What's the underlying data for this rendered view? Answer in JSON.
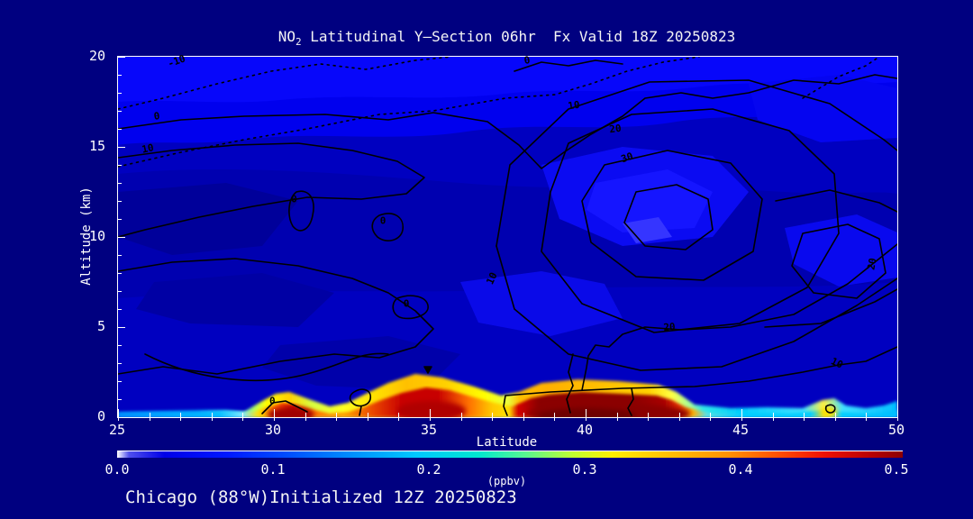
{
  "title": {
    "prefix": "NO",
    "sub": "2",
    "rest": " Latitudinal Y—Section 06hr  Fx Valid 18Z 20250823"
  },
  "footer": {
    "annotation": "Chicago (88°W)Initialized 12Z 20250823"
  },
  "colors": {
    "background": "#000080",
    "plot_base_blue": "#0000C0",
    "axis": "#FFFFFF",
    "contour_line": "#000000",
    "hotspot_core": "#8B0000"
  },
  "chart_data": {
    "type": "heatmap",
    "title": "NO2 Latitudinal Y-Section 06hr  Fx Valid 18Z 20250823",
    "xlabel": "Latitude",
    "ylabel": "Altitude (km)",
    "x_range": [
      25,
      50
    ],
    "y_range": [
      0,
      20
    ],
    "x_major_ticks": [
      25,
      30,
      35,
      40,
      45,
      50
    ],
    "x_minor_step": 1,
    "y_major_ticks": [
      0,
      5,
      10,
      15,
      20
    ],
    "y_minor_step": 1,
    "grid": false,
    "fill_field": "NO2 concentration (ppbv): mostly <0.1 ppbv aloft (shades of blue); enhanced boundary-layer plume below ~2 km",
    "surface_profile": {
      "latitudes": [
        25,
        26,
        27,
        28,
        29,
        30,
        30.5,
        31,
        32,
        33,
        34,
        35,
        36,
        37,
        38,
        39,
        40,
        41,
        42,
        42.5,
        43,
        44,
        45,
        46,
        47,
        47.5,
        48,
        48.5,
        49,
        50
      ],
      "ppbv": [
        0.15,
        0.15,
        0.15,
        0.15,
        0.2,
        0.4,
        0.5,
        0.4,
        0.3,
        0.4,
        0.5,
        0.5,
        0.4,
        0.3,
        0.5,
        0.5,
        0.5,
        0.5,
        0.5,
        0.5,
        0.4,
        0.2,
        0.2,
        0.2,
        0.2,
        0.25,
        0.3,
        0.2,
        0.18,
        0.15
      ]
    },
    "overlay_contours": {
      "labeled_levels": [
        -10,
        0,
        10,
        20,
        30
      ],
      "negative_style": "dotted",
      "positive_style": "solid",
      "primary_max_center": {
        "latitude": 42,
        "altitude_km": 11.5
      },
      "secondary_max_center": {
        "latitude": 48,
        "altitude_km": 9
      }
    },
    "contour_labels": [
      {
        "text": "-10",
        "x": 7.5,
        "y": 1.3,
        "rot": -20
      },
      {
        "text": "0",
        "x": 5.0,
        "y": 16.5,
        "rot": -8
      },
      {
        "text": "10",
        "x": 3.8,
        "y": 25.5,
        "rot": -12
      },
      {
        "text": "0",
        "x": 52.5,
        "y": 1.0,
        "rot": -10
      },
      {
        "text": "0",
        "x": 22.6,
        "y": 39.5,
        "rot": 0
      },
      {
        "text": "0",
        "x": 34.0,
        "y": 45.5,
        "rot": 0
      },
      {
        "text": "0",
        "x": 37.0,
        "y": 68.5,
        "rot": 0
      },
      {
        "text": "10",
        "x": 58.5,
        "y": 13.5,
        "rot": -8
      },
      {
        "text": "20",
        "x": 63.8,
        "y": 20.0,
        "rot": -8
      },
      {
        "text": "30",
        "x": 65.3,
        "y": 28.0,
        "rot": -20
      },
      {
        "text": "10",
        "x": 48.0,
        "y": 61.5,
        "rot": -65
      },
      {
        "text": "20",
        "x": 70.8,
        "y": 75.0,
        "rot": -5
      },
      {
        "text": "20",
        "x": 96.8,
        "y": 57.5,
        "rot": -80
      },
      {
        "text": "10",
        "x": 92.3,
        "y": 85.0,
        "rot": 25
      },
      {
        "text": "0",
        "x": 19.8,
        "y": 95.5,
        "rot": 0
      }
    ],
    "colorbar": {
      "label": "(ppbv)",
      "min": 0.0,
      "max": 0.5,
      "ticks": [
        "0.0",
        "0.1",
        "0.2",
        "0.3",
        "0.4",
        "0.5"
      ],
      "gradient_stops": [
        {
          "c": "#FFFFFF",
          "p": 0
        },
        {
          "c": "#5050EC",
          "p": 1.5
        },
        {
          "c": "#0000E8",
          "p": 6
        },
        {
          "c": "#0018FF",
          "p": 14
        },
        {
          "c": "#0050FF",
          "p": 22
        },
        {
          "c": "#0090FF",
          "p": 30
        },
        {
          "c": "#00C8FF",
          "p": 38
        },
        {
          "c": "#00E8D0",
          "p": 46
        },
        {
          "c": "#58F890",
          "p": 52
        },
        {
          "c": "#C0FF30",
          "p": 58
        },
        {
          "c": "#FFF000",
          "p": 63
        },
        {
          "c": "#FFC000",
          "p": 70
        },
        {
          "c": "#FF9000",
          "p": 78
        },
        {
          "c": "#FF5000",
          "p": 84
        },
        {
          "c": "#F01000",
          "p": 90
        },
        {
          "c": "#B80000",
          "p": 96
        },
        {
          "c": "#8B0000",
          "p": 100
        }
      ]
    }
  }
}
